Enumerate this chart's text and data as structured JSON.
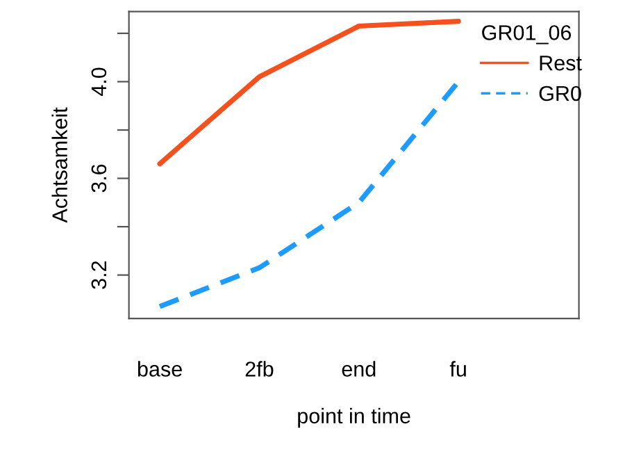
{
  "chart_data": {
    "type": "line",
    "xlabel": "point in time",
    "ylabel": "Achtsamkeit",
    "legend_title": "GR01_06",
    "categories": [
      "base",
      "2fb",
      "end",
      "fu"
    ],
    "series": [
      {
        "name": "Rest",
        "color": "#f4511e",
        "line_style": "solid",
        "values": [
          3.66,
          4.02,
          4.23,
          4.25
        ]
      },
      {
        "name": "GR0",
        "color": "#1e9bff",
        "line_style": "dashed",
        "values": [
          3.07,
          3.23,
          3.5,
          4.0
        ]
      }
    ],
    "ylim": [
      3.02,
      4.29
    ],
    "yticks": [
      3.2,
      {
        "value": 3.4,
        "label": null
      },
      3.6,
      {
        "value": 3.8,
        "label": null
      },
      {
        "value": 4.0,
        "label": "4.0"
      },
      {
        "value": 4.2,
        "label": null
      }
    ],
    "grid": false,
    "legend": "top right"
  }
}
